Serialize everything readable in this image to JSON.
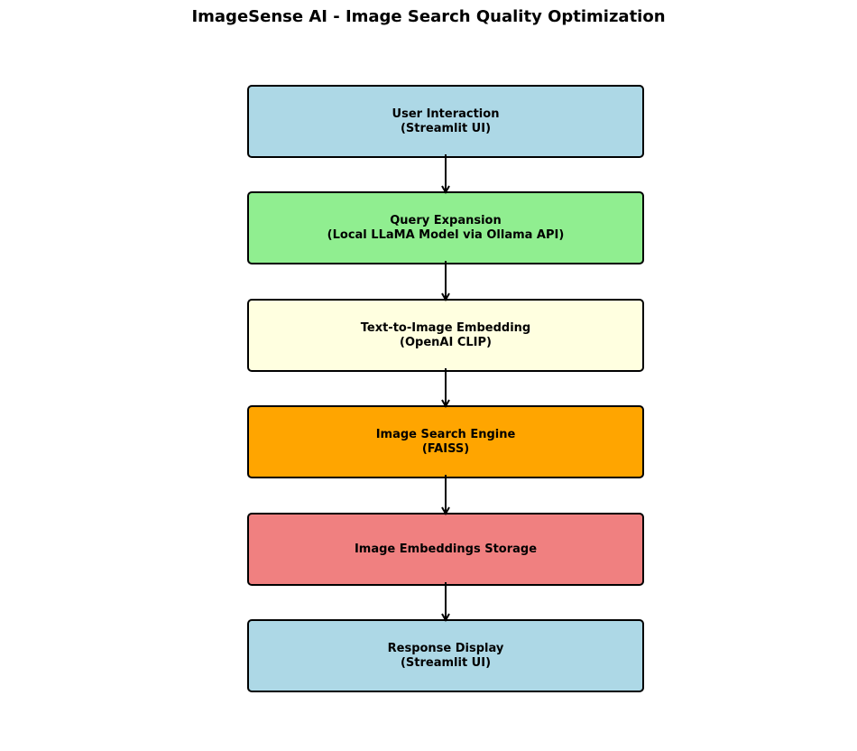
{
  "title": "ImageSense AI - Image Search Quality Optimization",
  "nodes": [
    {
      "line1": "User Interaction",
      "line2": "(Streamlit UI)",
      "fill": "#add8e6"
    },
    {
      "line1": "Query Expansion",
      "line2": "(Local LLaMA Model via Ollama API)",
      "fill": "#90ee90"
    },
    {
      "line1": "Text-to-Image Embedding",
      "line2": "(OpenAI CLIP)",
      "fill": "#ffffe0"
    },
    {
      "line1": "Image Search Engine",
      "line2": "(FAISS)",
      "fill": "#ffa500"
    },
    {
      "line1": "Image Embeddings Storage",
      "line2": "",
      "fill": "#f08080"
    },
    {
      "line1": "Response Display",
      "line2": "(Streamlit UI)",
      "fill": "#add8e6"
    }
  ],
  "edges": [
    {
      "from": 0,
      "to": 1
    },
    {
      "from": 1,
      "to": 2
    },
    {
      "from": 2,
      "to": 3
    },
    {
      "from": 3,
      "to": 4
    },
    {
      "from": 4,
      "to": 5
    }
  ]
}
